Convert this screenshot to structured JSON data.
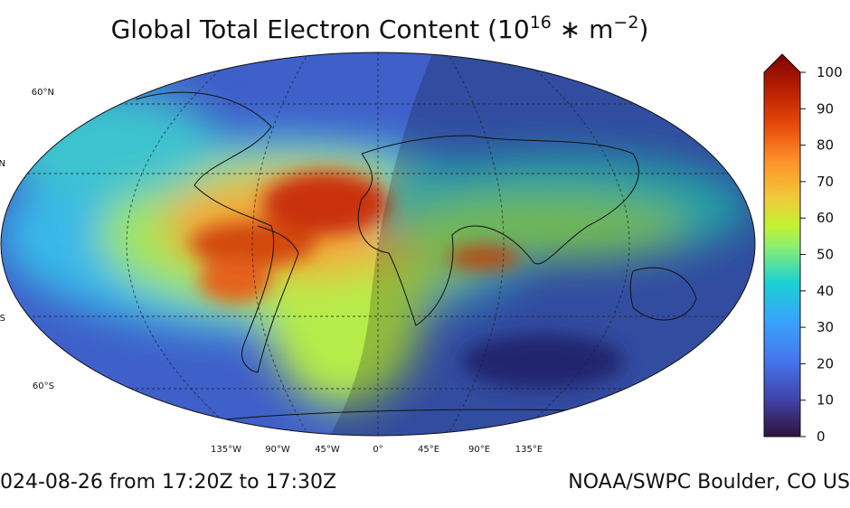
{
  "title": {
    "parts": [
      "Global Total Electron Content (10",
      "16",
      " ∗ m",
      "−2",
      ")"
    ]
  },
  "map": {
    "lat_labels": [
      "60°N",
      "N",
      "S",
      "60°S"
    ],
    "lon_labels": [
      "135°W",
      "90°W",
      "45°W",
      "0°",
      "45°E",
      "90°E",
      "135°E"
    ]
  },
  "colorbar": {
    "lim": [
      0,
      100
    ],
    "ticks": [
      0,
      10,
      20,
      30,
      40,
      50,
      60,
      70,
      80,
      90,
      100
    ]
  },
  "footer": {
    "left": "024-08-26 from 17:20Z to 17:30Z",
    "right": "NOAA/SWPC Boulder, CO US"
  }
}
